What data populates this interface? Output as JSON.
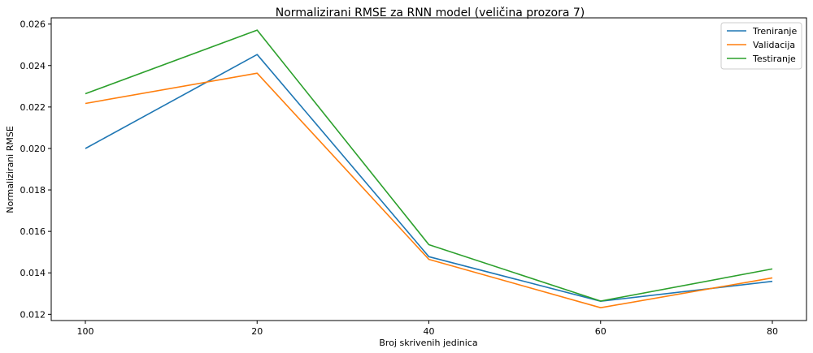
{
  "chart_data": {
    "type": "line",
    "title": "Normalizirani RMSE za RNN model (veličina prozora 7)",
    "xlabel": "Broj skrivenih jedinica",
    "ylabel": "Normalizirani RMSE",
    "categories": [
      "100",
      "20",
      "40",
      "60",
      "80"
    ],
    "ylim": [
      0.0117,
      0.0263
    ],
    "yticks": [
      "0.012",
      "0.014",
      "0.016",
      "0.018",
      "0.020",
      "0.022",
      "0.024",
      "0.026"
    ],
    "ytick_values": [
      0.012,
      0.014,
      0.016,
      0.018,
      0.02,
      0.022,
      0.024,
      0.026
    ],
    "grid": false,
    "legend_position": "top-right",
    "series": [
      {
        "name": "Treniranje",
        "color": "#1f77b4",
        "values": [
          0.02,
          0.02453,
          0.01478,
          0.01263,
          0.01359
        ]
      },
      {
        "name": "Validacija",
        "color": "#ff7f0e",
        "values": [
          0.02217,
          0.02363,
          0.01465,
          0.01232,
          0.01376
        ]
      },
      {
        "name": "Testiranje",
        "color": "#2ca02c",
        "values": [
          0.02264,
          0.02571,
          0.01536,
          0.01264,
          0.01419
        ]
      }
    ]
  }
}
